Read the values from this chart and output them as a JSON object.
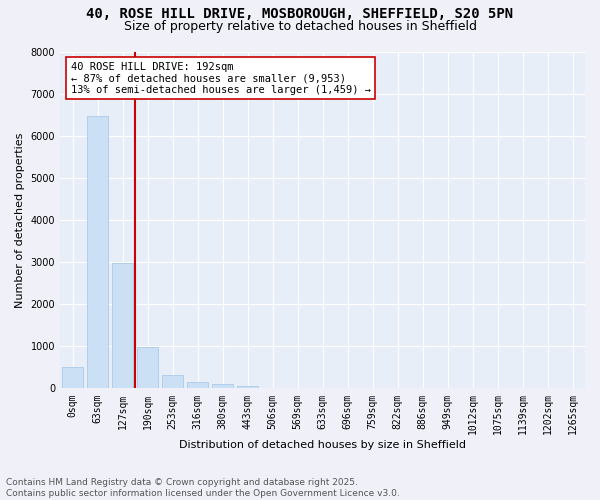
{
  "title_line1": "40, ROSE HILL DRIVE, MOSBOROUGH, SHEFFIELD, S20 5PN",
  "title_line2": "Size of property relative to detached houses in Sheffield",
  "xlabel": "Distribution of detached houses by size in Sheffield",
  "ylabel": "Number of detached properties",
  "bar_color": "#cce0f5",
  "bar_edge_color": "#a0c4e8",
  "background_color": "#e8eef8",
  "grid_color": "#ffffff",
  "categories": [
    "0sqm",
    "63sqm",
    "127sqm",
    "190sqm",
    "253sqm",
    "316sqm",
    "380sqm",
    "443sqm",
    "506sqm",
    "569sqm",
    "633sqm",
    "696sqm",
    "759sqm",
    "822sqm",
    "886sqm",
    "949sqm",
    "1012sqm",
    "1075sqm",
    "1139sqm",
    "1202sqm",
    "1265sqm"
  ],
  "values": [
    520,
    6480,
    2980,
    980,
    330,
    155,
    100,
    60,
    0,
    0,
    0,
    0,
    0,
    0,
    0,
    0,
    0,
    0,
    0,
    0,
    0
  ],
  "ylim": [
    0,
    8000
  ],
  "yticks": [
    0,
    1000,
    2000,
    3000,
    4000,
    5000,
    6000,
    7000,
    8000
  ],
  "vline_color": "#cc0000",
  "annotation_line1": "40 ROSE HILL DRIVE: 192sqm",
  "annotation_line2": "← 87% of detached houses are smaller (9,953)",
  "annotation_line3": "13% of semi-detached houses are larger (1,459) →",
  "annotation_box_color": "#ffffff",
  "annotation_box_edge": "#cc0000",
  "footer_line1": "Contains HM Land Registry data © Crown copyright and database right 2025.",
  "footer_line2": "Contains public sector information licensed under the Open Government Licence v3.0.",
  "title_fontsize": 10,
  "subtitle_fontsize": 9,
  "axis_label_fontsize": 8,
  "tick_fontsize": 7,
  "annotation_fontsize": 7.5,
  "footer_fontsize": 6.5
}
